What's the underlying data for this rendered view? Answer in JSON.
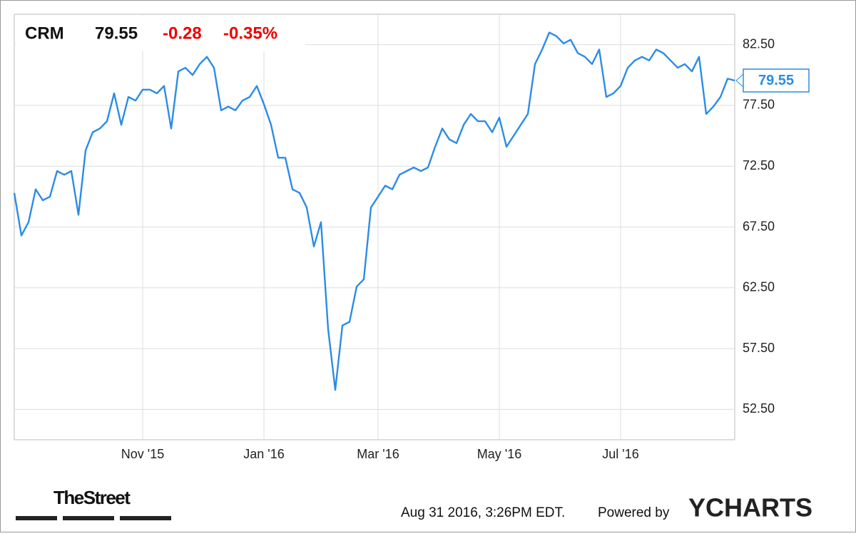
{
  "chart_data": {
    "type": "line",
    "header": {
      "ticker": "CRM",
      "price": "79.55",
      "change": "-0.28",
      "change_pct": "-0.35%"
    },
    "categories": [
      null,
      null,
      null,
      null,
      null,
      null,
      null,
      null,
      null,
      null,
      null,
      null,
      null,
      null,
      null,
      null,
      null,
      null,
      "Nov '15",
      null,
      null,
      null,
      null,
      null,
      null,
      null,
      null,
      null,
      null,
      null,
      null,
      null,
      null,
      null,
      null,
      "Jan '16",
      null,
      null,
      null,
      null,
      null,
      null,
      null,
      null,
      null,
      null,
      null,
      null,
      null,
      null,
      null,
      "Mar '16",
      null,
      null,
      null,
      null,
      null,
      null,
      null,
      null,
      null,
      null,
      null,
      null,
      null,
      null,
      null,
      null,
      "May '16",
      null,
      null,
      null,
      null,
      null,
      null,
      null,
      null,
      null,
      null,
      null,
      null,
      null,
      null,
      null,
      null,
      "Jul '16",
      null,
      null,
      null,
      null,
      null,
      null,
      null,
      null,
      null,
      null,
      null,
      null,
      null,
      null,
      null,
      null
    ],
    "series": [
      {
        "name": "CRM",
        "color": "#2b8ce6",
        "values": [
          70.3,
          66.8,
          67.9,
          70.6,
          69.7,
          70.0,
          72.1,
          71.8,
          72.1,
          68.5,
          73.8,
          75.3,
          75.6,
          76.2,
          78.5,
          75.9,
          78.2,
          77.9,
          78.8,
          78.8,
          78.5,
          79.1,
          75.6,
          80.3,
          80.6,
          80.0,
          80.9,
          81.5,
          80.6,
          77.1,
          77.4,
          77.1,
          77.9,
          78.2,
          79.1,
          77.6,
          75.9,
          73.2,
          73.2,
          70.6,
          70.3,
          69.1,
          65.9,
          67.9,
          59.1,
          54.1,
          59.4,
          59.7,
          62.6,
          63.2,
          69.1,
          70.0,
          70.9,
          70.6,
          71.8,
          72.1,
          72.4,
          72.1,
          72.4,
          74.1,
          75.6,
          74.7,
          74.4,
          75.9,
          76.8,
          76.2,
          76.2,
          75.3,
          76.5,
          74.1,
          75.0,
          75.9,
          76.8,
          80.9,
          82.1,
          83.5,
          83.2,
          82.6,
          82.9,
          81.8,
          81.5,
          80.9,
          82.1,
          78.2,
          78.5,
          79.1,
          80.6,
          81.2,
          81.5,
          81.2,
          82.1,
          81.8,
          81.2,
          80.6,
          80.9,
          80.3,
          81.5,
          76.8,
          77.4,
          78.2,
          79.7,
          79.55
        ]
      }
    ],
    "ylim": [
      50,
      85
    ],
    "yticks": [
      {
        "value": 52.5,
        "label": "52.50"
      },
      {
        "value": 57.5,
        "label": "57.50"
      },
      {
        "value": 62.5,
        "label": "62.50"
      },
      {
        "value": 67.5,
        "label": "67.50"
      },
      {
        "value": 72.5,
        "label": "72.50"
      },
      {
        "value": 77.5,
        "label": "77.50"
      },
      {
        "value": 82.5,
        "label": "82.50"
      }
    ],
    "grid": true,
    "footer": {
      "source": "TheStreet",
      "timestamp": "Aug 31 2016, 3:26PM EDT.",
      "powered": "Powered by",
      "brand": "YCHARTS"
    }
  }
}
